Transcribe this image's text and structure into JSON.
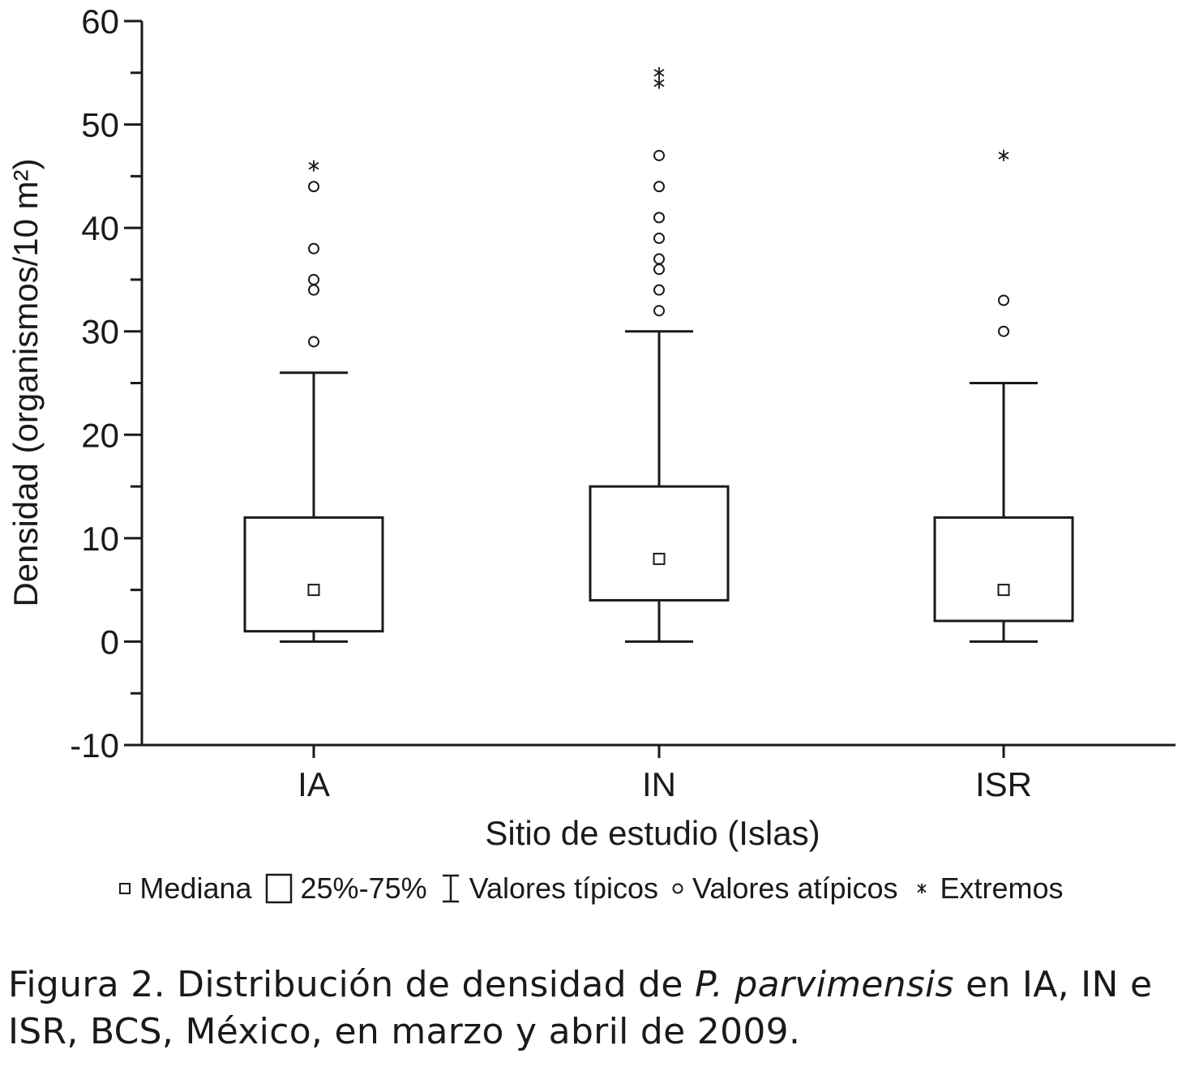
{
  "chart_data": {
    "type": "box",
    "title": "",
    "xlabel": "Sitio de estudio (Islas)",
    "ylabel": "Densidad (organismos/10 m²)",
    "ylim": [
      -10,
      60
    ],
    "yticks": [
      "-10",
      "0",
      "10",
      "20",
      "30",
      "40",
      "50",
      "60"
    ],
    "categories": [
      "IA",
      "IN",
      "ISR"
    ],
    "boxes": [
      {
        "category": "IA",
        "median": 5,
        "q1": 1,
        "q3": 12,
        "whisker_low": 0,
        "whisker_high": 26,
        "outliers": [
          29,
          34,
          35,
          38,
          44
        ],
        "extremes": [
          46
        ]
      },
      {
        "category": "IN",
        "median": 8,
        "q1": 4,
        "q3": 15,
        "whisker_low": 0,
        "whisker_high": 30,
        "outliers": [
          32,
          34,
          36,
          37,
          39,
          41,
          44,
          47
        ],
        "extremes": [
          54,
          55
        ]
      },
      {
        "category": "ISR",
        "median": 5,
        "q1": 2,
        "q3": 12,
        "whisker_low": 0,
        "whisker_high": 25,
        "outliers": [
          30,
          33
        ],
        "extremes": [
          47
        ]
      }
    ],
    "legend": {
      "position": "bottom",
      "items": [
        {
          "symbol": "median-square",
          "label": "Mediana"
        },
        {
          "symbol": "box",
          "label": "25%-75%"
        },
        {
          "symbol": "whisker",
          "label": "Valores típicos"
        },
        {
          "symbol": "circle",
          "label": "Valores atípicos"
        },
        {
          "symbol": "asterisk",
          "label": "Extremos"
        }
      ]
    }
  },
  "caption": {
    "prefix": "Figura 2. Distribución de densidad de ",
    "species": "P. parvimensis",
    "suffix": " en IA, IN e ISR, BCS, México, en marzo y abril de 2009."
  }
}
